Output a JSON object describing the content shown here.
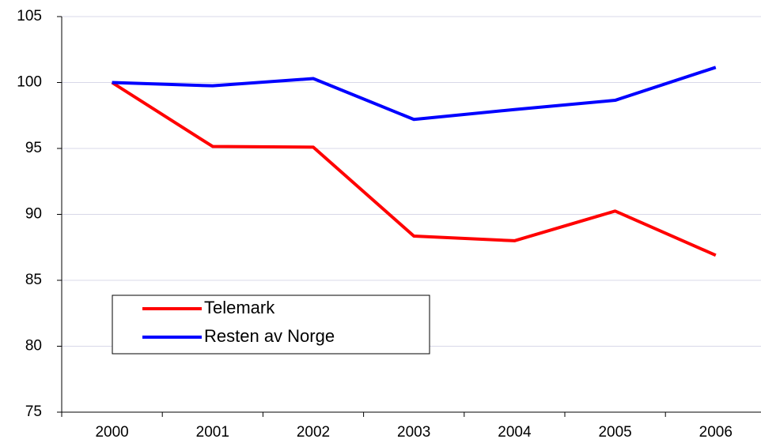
{
  "chart_data": {
    "type": "line",
    "categories": [
      "2000",
      "2001",
      "2002",
      "2003",
      "2004",
      "2005",
      "2006"
    ],
    "series": [
      {
        "name": "Telemark",
        "color": "#ff0000",
        "values": [
          100,
          95.15,
          95.1,
          88.35,
          88.0,
          90.25,
          86.9
        ]
      },
      {
        "name": "Resten av Norge",
        "color": "#0000ff",
        "values": [
          100,
          99.75,
          100.3,
          97.2,
          97.95,
          98.65,
          101.15
        ]
      }
    ],
    "ylim": [
      75,
      105
    ],
    "yticks": [
      75,
      80,
      85,
      90,
      95,
      100,
      105
    ],
    "grid": true
  }
}
